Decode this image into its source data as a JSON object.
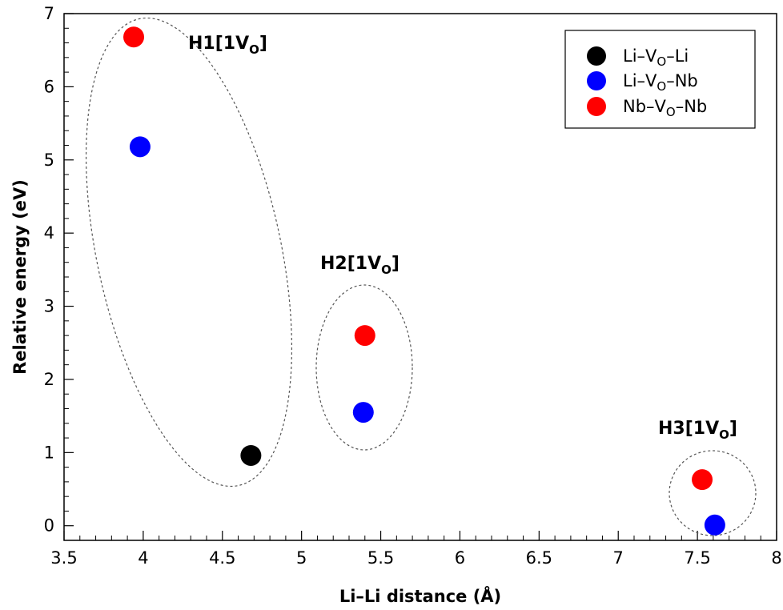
{
  "chart_data": {
    "type": "scatter",
    "xlabel": "Li–Li distance (Å)",
    "ylabel": "Relative energy (eV)",
    "xlim": [
      3.5,
      8
    ],
    "ylim": [
      -0.2,
      7
    ],
    "x_ticks": [
      "3.5",
      "4",
      "4.5",
      "5",
      "5.5",
      "6",
      "6.5",
      "7",
      "7.5",
      "8"
    ],
    "x_tick_values": [
      3.5,
      4,
      4.5,
      5,
      5.5,
      6,
      6.5,
      7,
      7.5,
      8
    ],
    "y_ticks": [
      "0",
      "1",
      "2",
      "3",
      "4",
      "5",
      "6",
      "7"
    ],
    "y_tick_values": [
      0,
      1,
      2,
      3,
      4,
      5,
      6,
      7
    ],
    "grid": false,
    "legend_position": "top-right",
    "series": [
      {
        "legend": {
          "pre": "Li–V",
          "sub": "O",
          "post": "–Li"
        },
        "color": "#000000",
        "points": [
          {
            "x": 4.68,
            "y": 0.96
          }
        ]
      },
      {
        "legend": {
          "pre": "Li–V",
          "sub": "O",
          "post": "–Nb"
        },
        "color": "#0000ff",
        "points": [
          {
            "x": 3.98,
            "y": 5.18
          },
          {
            "x": 5.39,
            "y": 1.55
          },
          {
            "x": 7.61,
            "y": 0.01
          }
        ]
      },
      {
        "legend": {
          "pre": "Nb–V",
          "sub": "O",
          "post": "–Nb"
        },
        "color": "#ff0000",
        "points": [
          {
            "x": 3.94,
            "y": 6.68
          },
          {
            "x": 5.4,
            "y": 2.6
          },
          {
            "x": 7.53,
            "y": 0.63
          }
        ]
      }
    ],
    "annotations": [
      {
        "pre": "H1[1V",
        "sub": "O",
        "post": "]"
      },
      {
        "pre": "H2[1V",
        "sub": "O",
        "post": "]"
      },
      {
        "pre": "H3[1V",
        "sub": "O",
        "post": "]"
      }
    ]
  }
}
